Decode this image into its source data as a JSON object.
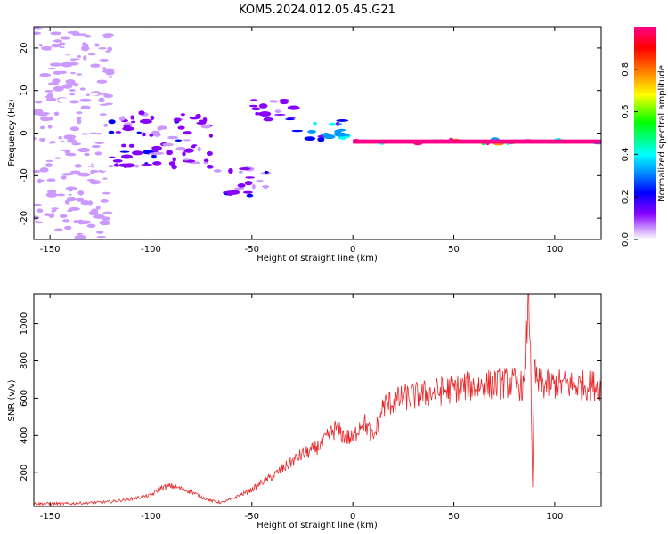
{
  "title": "KOM5.2024.012.05.45.G21",
  "chart_data": [
    {
      "type": "heatmap",
      "xlabel": "Height of straight line (km)",
      "ylabel": "Frequency (Hz)",
      "xlim": [
        -158,
        123
      ],
      "ylim": [
        -25,
        25
      ],
      "xticks": [
        -150,
        -100,
        -50,
        0,
        50,
        100
      ],
      "yticks": [
        -20,
        -10,
        0,
        10,
        20
      ],
      "colorbar": {
        "label": "Normalized spectral amplitude",
        "range": [
          0,
          1
        ],
        "ticks": [
          0.0,
          0.2,
          0.4,
          0.6,
          0.8
        ],
        "colors": [
          "#ffffff",
          "#cc99ff",
          "#8800ff",
          "#0000ff",
          "#0099ff",
          "#00ffff",
          "#00ff00",
          "#ffff00",
          "#ff8800",
          "#ff0000",
          "#ff0088"
        ]
      },
      "features": [
        {
          "x_from": -158,
          "x_to": -120,
          "freq_from": -25,
          "freq_to": 25,
          "amplitude": 0.08
        },
        {
          "x_from": -120,
          "x_to": -70,
          "freq_from": -8,
          "freq_to": 5,
          "amplitude": 0.2
        },
        {
          "x_from": -68,
          "x_to": -42,
          "freq_from": -15,
          "freq_to": -8,
          "amplitude": 0.22
        },
        {
          "x_from": -50,
          "x_to": -28,
          "freq_from": 3,
          "freq_to": 8,
          "amplitude": 0.2
        },
        {
          "x_from": -28,
          "x_to": 0,
          "freq_from": -2,
          "freq_to": 3,
          "amplitude": 0.45
        },
        {
          "x_from": 0,
          "x_to": 123,
          "freq_from": -2.5,
          "freq_to": -1.5,
          "amplitude": 0.95
        }
      ]
    },
    {
      "type": "line",
      "xlabel": "Height of straight line (km)",
      "ylabel": "SNR (v/v)",
      "xlim": [
        -158,
        123
      ],
      "ylim": [
        20,
        1160
      ],
      "xticks": [
        -150,
        -100,
        -50,
        0,
        50,
        100
      ],
      "yticks": [
        200,
        400,
        600,
        800,
        1000
      ],
      "series": [
        {
          "color": "#e8282a",
          "x": [
            -158,
            -150,
            -140,
            -130,
            -120,
            -110,
            -100,
            -95,
            -90,
            -85,
            -80,
            -75,
            -70,
            -65,
            -60,
            -55,
            -50,
            -45,
            -40,
            -35,
            -30,
            -25,
            -20,
            -15,
            -10,
            -8,
            -5,
            0,
            3,
            5,
            8,
            10,
            12,
            15,
            20,
            25,
            30,
            35,
            40,
            45,
            50,
            55,
            60,
            65,
            70,
            75,
            80,
            85,
            87,
            88,
            89,
            90,
            91,
            92,
            95,
            100,
            110,
            123
          ],
          "y": [
            35,
            35,
            35,
            40,
            45,
            60,
            80,
            120,
            130,
            115,
            100,
            70,
            50,
            40,
            60,
            85,
            110,
            150,
            180,
            220,
            260,
            300,
            320,
            360,
            420,
            440,
            400,
            380,
            450,
            480,
            430,
            380,
            450,
            560,
            580,
            600,
            610,
            620,
            630,
            640,
            650,
            660,
            665,
            670,
            675,
            680,
            680,
            660,
            1160,
            900,
            110,
            780,
            690,
            680,
            670,
            675,
            670,
            670
          ]
        }
      ]
    }
  ]
}
